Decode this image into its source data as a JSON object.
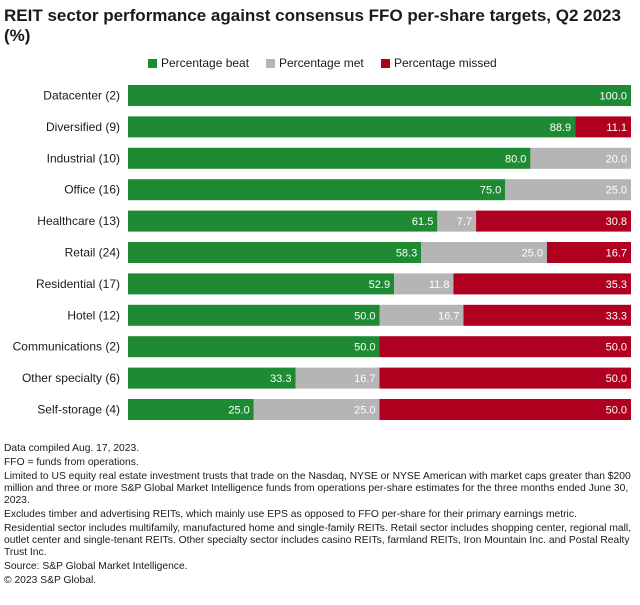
{
  "title": "REIT sector performance against consensus FFO per-share targets, Q2 2023 (%)",
  "colors": {
    "beat": "#1e8a33",
    "met": "#b5b5b5",
    "missed": "#b00020"
  },
  "chart_data": {
    "type": "bar",
    "orientation": "horizontal",
    "stacked": true,
    "title": "REIT sector performance against consensus FFO per-share targets, Q2 2023 (%)",
    "xlim": [
      0,
      100
    ],
    "legend_position": "top",
    "categories": [
      "Datacenter (2)",
      "Diversified (9)",
      "Industrial (10)",
      "Office (16)",
      "Healthcare (13)",
      "Retail (24)",
      "Residential (17)",
      "Hotel (12)",
      "Communications (2)",
      "Other specialty (6)",
      "Self-storage (4)"
    ],
    "series": [
      {
        "name": "Percentage beat",
        "values": [
          100.0,
          88.9,
          80.0,
          75.0,
          61.5,
          58.3,
          52.9,
          50.0,
          50.0,
          33.3,
          25.0
        ]
      },
      {
        "name": "Percentage met",
        "values": [
          0,
          0,
          20.0,
          25.0,
          7.7,
          25.0,
          11.8,
          16.7,
          0,
          16.7,
          25.0
        ]
      },
      {
        "name": "Percentage missed",
        "values": [
          0,
          11.1,
          0,
          0,
          30.8,
          16.7,
          35.3,
          33.3,
          50.0,
          50.0,
          50.0
        ]
      }
    ]
  },
  "notes": [
    "Data compiled Aug. 17, 2023.",
    "FFO = funds from operations.",
    "Limited to US equity real estate investment trusts that trade on the Nasdaq, NYSE or NYSE American with market caps greater than $200 million and three or more S&P Global Market Intelligence funds from operations per-share estimates for the three months ended June 30, 2023.",
    "Excludes timber and advertising REITs, which mainly use EPS as opposed to FFO per-share for their primary earnings metric.",
    "Residential sector includes multifamily, manufactured home and single-family REITs. Retail sector includes shopping center, regional mall, outlet center and single-tenant REITs. Other specialty sector includes casino REITs, farmland REITs, Iron Mountain Inc. and Postal Realty Trust Inc.",
    "Source: S&P Global Market Intelligence.",
    "© 2023 S&P Global."
  ]
}
